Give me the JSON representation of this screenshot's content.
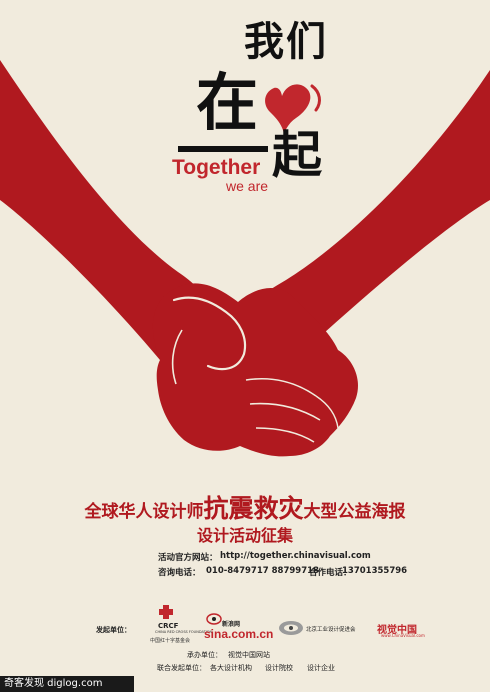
{
  "title": {
    "line1": "我们",
    "line2": "在",
    "line3": "起",
    "english_main": "Together",
    "english_sub": "we are"
  },
  "headline": {
    "part1": "全球华人设计师",
    "emphasis": "抗震救灾",
    "part2": "大型公益海报",
    "line2": "设计活动征集"
  },
  "contact": {
    "site_label": "活动官方网站：",
    "site_url": "http://together.chinavisual.com",
    "phone_label": "咨询电话：",
    "phone_numbers": "010-8479717  88799718",
    "coop_label": "合作电话：",
    "coop_phone": "13701355796"
  },
  "credits": {
    "sponsor_label": "发起单位：",
    "organizer_label": "承办单位：",
    "organizer_name": "视觉中国网站",
    "cosponsor_label": "联合发起单位：",
    "cosponsors": [
      "各大设计机构",
      "设计院校",
      "设计企业"
    ]
  },
  "logos": {
    "crcf_text": "CRCF",
    "crcf_sub": "CHINA RED CROSS FOUNDATION",
    "crcf_cn": "中国红十字基金会",
    "sina_text": "新浪网",
    "sina_domain": "sina.com.cn",
    "assoc_text": "北京工业设计促进会",
    "chinavisual_text": "视觉中国",
    "chinavisual_url": "www.ChinaVisual.com"
  },
  "watermark": "奇客发现 diglog.com",
  "colors": {
    "background": "#f1ebdd",
    "hand_red": "#b0191f",
    "accent_red": "#c1272d",
    "text_dark": "#111111"
  }
}
